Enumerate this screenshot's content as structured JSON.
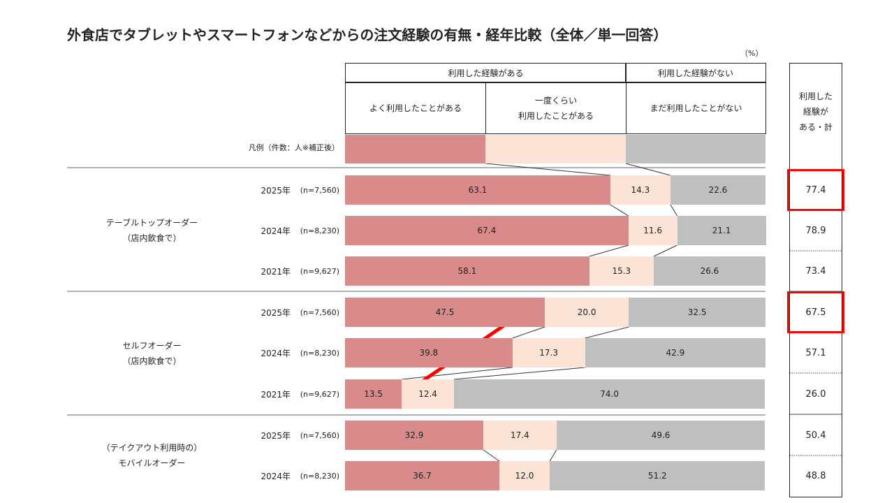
{
  "chart_data": {
    "type": "bar",
    "orientation": "horizontal",
    "stacked": true,
    "title": "外食店でタブレットやスマートフォンなどからの注文経験の有無・経年比較（全体／単一回答）",
    "unit": "（%）",
    "header_groups": [
      "利用した経験がある",
      "利用した経験がない"
    ],
    "series": [
      {
        "name": "よく利用したことがある",
        "color": "#d98a8a"
      },
      {
        "name": "一度くらい\n利用したことがある",
        "color": "#fbe3d6"
      },
      {
        "name": "まだ利用したことがない",
        "color": "#bfbfbf"
      }
    ],
    "total_header": "利用した\n経験が\nある・計",
    "legend_label": "凡例（件数：人※補正後）",
    "highlight_color": "#ff0000",
    "groups": [
      {
        "label": "テーブルトップオーダー\n（店内飲食で）",
        "rows": [
          {
            "year": "2025年",
            "n": "(n=7,560)",
            "values": [
              63.1,
              14.3,
              22.6
            ],
            "value_labels": [
              "63.1",
              "14.3",
              "22.6"
            ],
            "total": 77.4,
            "total_label": "77.4",
            "highlight": true
          },
          {
            "year": "2024年",
            "n": "(n=8,230)",
            "values": [
              67.4,
              11.6,
              21.1
            ],
            "value_labels": [
              "67.4",
              "11.6",
              "21.1"
            ],
            "total": 78.9,
            "total_label": "78.9",
            "highlight": false
          },
          {
            "year": "2021年",
            "n": "(n=9,627)",
            "values": [
              58.1,
              15.3,
              26.6
            ],
            "value_labels": [
              "58.1",
              "15.3",
              "26.6"
            ],
            "total": 73.4,
            "total_label": "73.4",
            "highlight": false
          }
        ]
      },
      {
        "label": "セルフオーダー\n（店内飲食で）",
        "rows": [
          {
            "year": "2025年",
            "n": "(n=7,560)",
            "values": [
              47.5,
              20.0,
              32.5
            ],
            "value_labels": [
              "47.5",
              "20.0",
              "32.5"
            ],
            "total": 67.5,
            "total_label": "67.5",
            "highlight": true
          },
          {
            "year": "2024年",
            "n": "(n=8,230)",
            "values": [
              39.8,
              17.3,
              42.9
            ],
            "value_labels": [
              "39.8",
              "17.3",
              "42.9"
            ],
            "total": 57.1,
            "total_label": "57.1",
            "highlight": false
          },
          {
            "year": "2021年",
            "n": "(n=9,627)",
            "values": [
              13.5,
              12.4,
              74.0
            ],
            "value_labels": [
              "13.5",
              "12.4",
              "74.0"
            ],
            "total": 26.0,
            "total_label": "26.0",
            "highlight": false
          }
        ]
      },
      {
        "label": "（テイクアウト利用時の）\nモバイルオーダー",
        "rows": [
          {
            "year": "2025年",
            "n": "(n=7,560)",
            "values": [
              32.9,
              17.4,
              49.6
            ],
            "value_labels": [
              "32.9",
              "17.4",
              "49.6"
            ],
            "total": 50.4,
            "total_label": "50.4",
            "highlight": false
          },
          {
            "year": "2024年",
            "n": "(n=8,230)",
            "values": [
              36.7,
              12.0,
              51.2
            ],
            "value_labels": [
              "36.7",
              "12.0",
              "51.2"
            ],
            "total": 48.8,
            "total_label": "48.8",
            "highlight": false
          }
        ]
      }
    ]
  }
}
